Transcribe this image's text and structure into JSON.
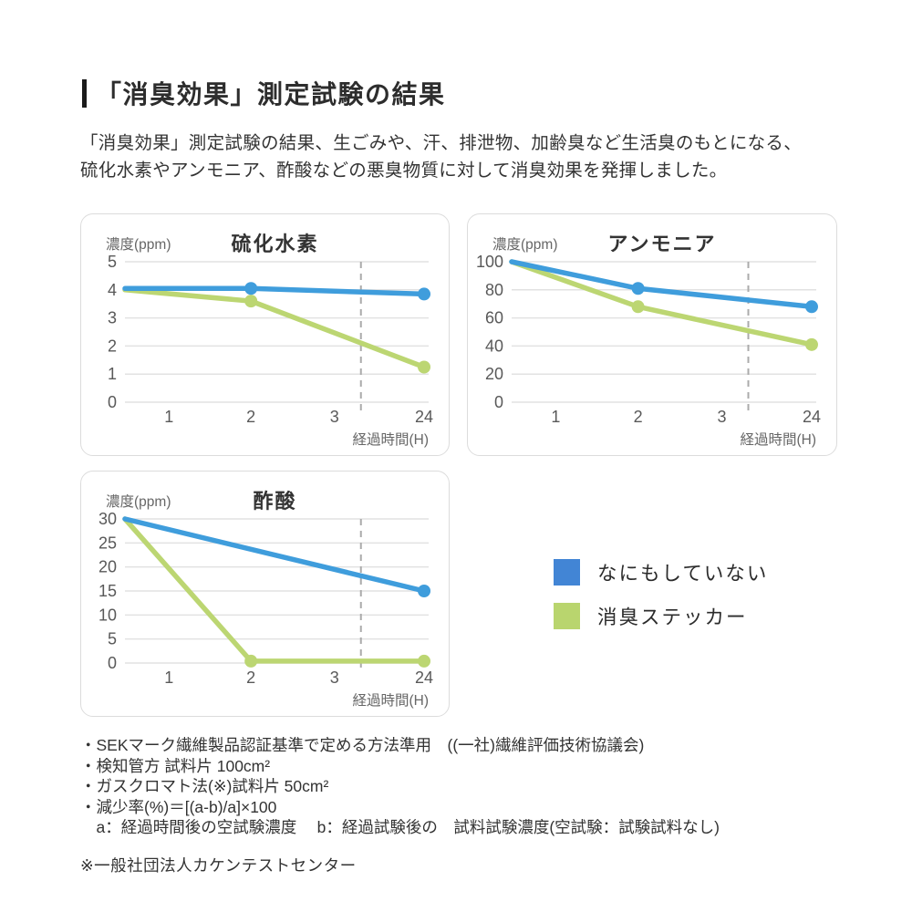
{
  "page": {
    "title": "「消臭効果」測定試験の結果",
    "description_lines": [
      "「消臭効果」測定試験の結果、生ごみや、汗、排泄物、加齢臭など生活臭のもとになる、",
      "硫化水素やアンモニア、酢酸などの悪臭物質に対して消臭効果を発揮しました。"
    ]
  },
  "colors": {
    "blue": "#3F9DDC",
    "green": "#BCD672",
    "legend_blue": "#4285D5",
    "legend_green": "#B9D56E",
    "grid": "#E2E2E2",
    "dash": "#ABABAB"
  },
  "legend": {
    "items": [
      {
        "label": "なにもしていない",
        "color_key": "legend_blue"
      },
      {
        "label": "消臭ステッカー",
        "color_key": "legend_green"
      }
    ]
  },
  "chart_data": [
    {
      "type": "line",
      "title": "硫化水素",
      "ylabel": "濃度(ppm)",
      "xlabel": "経過時間(H)",
      "ymax": 5,
      "yticks": [
        5,
        4,
        3,
        2,
        1,
        0
      ],
      "xticklabels": [
        "1",
        "2",
        "3",
        "24"
      ],
      "axis_break": "dashed vertical line between 3 and 24",
      "grid": true,
      "series": [
        {
          "name": "なにもしていない",
          "color_key": "blue",
          "points": [
            {
              "x": "start",
              "y": 4.05
            },
            {
              "x": "2",
              "y": 4.05,
              "marker": true
            },
            {
              "x": "24",
              "y": 3.85,
              "marker": true
            }
          ]
        },
        {
          "name": "消臭ステッカー",
          "color_key": "green",
          "points": [
            {
              "x": "start",
              "y": 4.0
            },
            {
              "x": "2",
              "y": 3.6,
              "marker": true
            },
            {
              "x": "24",
              "y": 1.25,
              "marker": true
            }
          ]
        }
      ]
    },
    {
      "type": "line",
      "title": "アンモニア",
      "ylabel": "濃度(ppm)",
      "xlabel": "経過時間(H)",
      "ymax": 100,
      "yticks": [
        100,
        80,
        60,
        40,
        20,
        0
      ],
      "xticklabels": [
        "1",
        "2",
        "3",
        "24"
      ],
      "axis_break": "dashed vertical line between 3 and 24",
      "grid": true,
      "series": [
        {
          "name": "なにもしていない",
          "color_key": "blue",
          "points": [
            {
              "x": "start",
              "y": 100
            },
            {
              "x": "2",
              "y": 81,
              "marker": true
            },
            {
              "x": "24",
              "y": 68,
              "marker": true
            }
          ]
        },
        {
          "name": "消臭ステッカー",
          "color_key": "green",
          "points": [
            {
              "x": "start",
              "y": 100
            },
            {
              "x": "2",
              "y": 68,
              "marker": true
            },
            {
              "x": "24",
              "y": 41,
              "marker": true
            }
          ]
        }
      ]
    },
    {
      "type": "line",
      "title": "酢酸",
      "ylabel": "濃度(ppm)",
      "xlabel": "経過時間(H)",
      "ymax": 30,
      "yticks": [
        30,
        25,
        20,
        15,
        10,
        5,
        0
      ],
      "xticklabels": [
        "1",
        "2",
        "3",
        "24"
      ],
      "axis_break": "dashed vertical line between 3 and 24",
      "grid": true,
      "series": [
        {
          "name": "なにもしていない",
          "color_key": "blue",
          "points": [
            {
              "x": "start",
              "y": 30
            },
            {
              "x": "24",
              "y": 15,
              "marker": true
            }
          ]
        },
        {
          "name": "消臭ステッカー",
          "color_key": "green",
          "points": [
            {
              "x": "start",
              "y": 30
            },
            {
              "x": "2",
              "y": 0.4,
              "marker": true
            },
            {
              "x": "24",
              "y": 0.4,
              "marker": true
            }
          ]
        }
      ]
    }
  ],
  "footnotes": {
    "lines": [
      "・SEKマーク繊維製品認証基準で定める方法準用　((一社)繊維評価技術協議会)",
      "・検知管方 試料片 100cm²",
      "・ガスクロマト法(※)試料片 50cm²",
      "・減少率(%)＝[(a-b)/a]×100",
      "　a：経過時間後の空試験濃度　 b：経過試験後の　試料試験濃度(空試験：試験試料なし)"
    ],
    "org": "※一般社団法人カケンテストセンター"
  }
}
